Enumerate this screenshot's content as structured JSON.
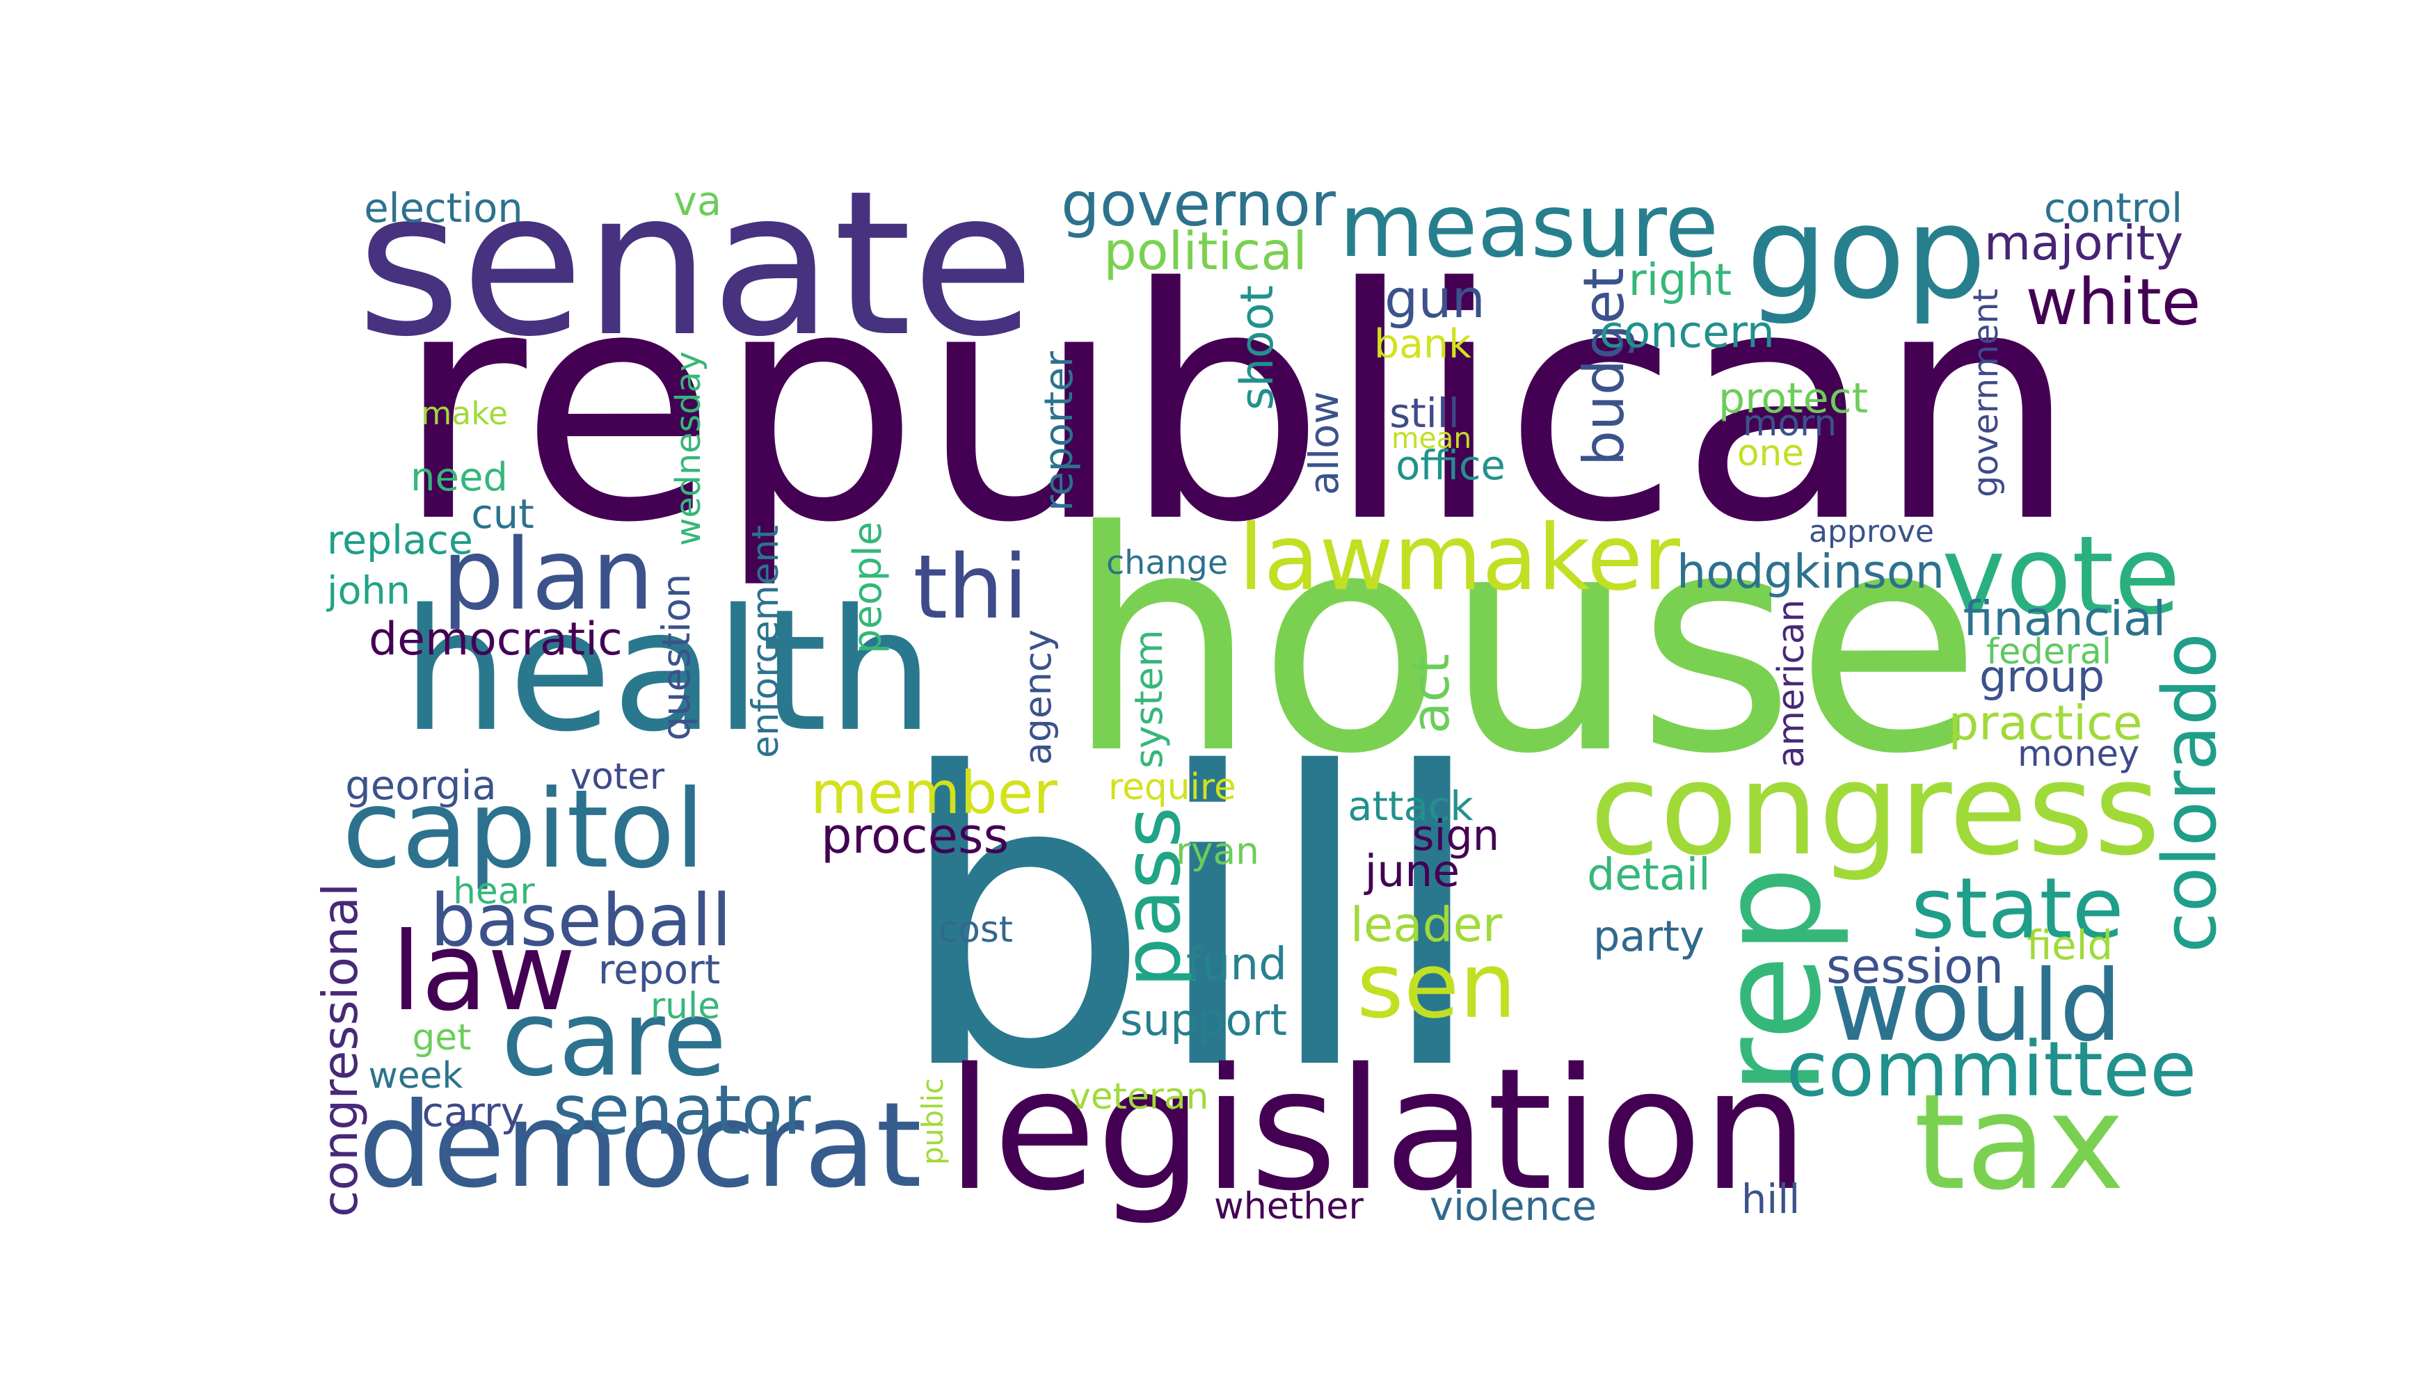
{
  "cloud": {
    "words": [
      {
        "text": "republican",
        "color": "#440154"
      },
      {
        "text": "house",
        "color": "#7ad151"
      },
      {
        "text": "bill",
        "color": "#2a788e"
      },
      {
        "text": "senate",
        "color": "#46327e"
      },
      {
        "text": "health",
        "color": "#2a788e"
      },
      {
        "text": "legislation",
        "color": "#440154"
      },
      {
        "text": "democrat",
        "color": "#365c8d"
      },
      {
        "text": "congress",
        "color": "#a0da39"
      },
      {
        "text": "gop",
        "color": "#277f8e"
      },
      {
        "text": "measure",
        "color": "#277f8e"
      },
      {
        "text": "lawmaker",
        "color": "#c2df23"
      },
      {
        "text": "vote",
        "color": "#2ab07f"
      },
      {
        "text": "law",
        "color": "#440154"
      },
      {
        "text": "capitol",
        "color": "#2c728e"
      },
      {
        "text": "care",
        "color": "#2c728e"
      },
      {
        "text": "tax",
        "color": "#7ad151"
      },
      {
        "text": "would",
        "color": "#2c728e"
      },
      {
        "text": "rep",
        "color": "#35b779"
      },
      {
        "text": "sen",
        "color": "#c2df23"
      },
      {
        "text": "state",
        "color": "#1f9e89"
      },
      {
        "text": "plan",
        "color": "#3b528b"
      },
      {
        "text": "thi",
        "color": "#3e4a89"
      },
      {
        "text": "committee",
        "color": "#21918c"
      },
      {
        "text": "pass",
        "color": "#20a486"
      },
      {
        "text": "member",
        "color": "#d2e21b"
      },
      {
        "text": "baseball",
        "color": "#3b528b"
      },
      {
        "text": "senator",
        "color": "#31688e"
      },
      {
        "text": "colorado",
        "color": "#1f9e89"
      },
      {
        "text": "governor",
        "color": "#2c728e"
      },
      {
        "text": "white",
        "color": "#440154"
      },
      {
        "text": "budget",
        "color": "#3b528b"
      },
      {
        "text": "act",
        "color": "#6ccd5a"
      },
      {
        "text": "gun",
        "color": "#3b528b"
      },
      {
        "text": "majority",
        "color": "#482475"
      },
      {
        "text": "political",
        "color": "#7ad151"
      },
      {
        "text": "shoot",
        "color": "#21918c"
      },
      {
        "text": "hodgkinson",
        "color": "#2c728e"
      },
      {
        "text": "democratic",
        "color": "#440154"
      },
      {
        "text": "process",
        "color": "#440154"
      },
      {
        "text": "practice",
        "color": "#a0da39"
      },
      {
        "text": "financial",
        "color": "#2c728e"
      },
      {
        "text": "group",
        "color": "#3b528b"
      },
      {
        "text": "money",
        "color": "#3e4a89"
      },
      {
        "text": "fund",
        "color": "#26828e"
      },
      {
        "text": "support",
        "color": "#277f8e"
      },
      {
        "text": "leader",
        "color": "#a0da39"
      },
      {
        "text": "session",
        "color": "#3b528b"
      },
      {
        "text": "congressional",
        "color": "#482878"
      },
      {
        "text": "wednesday",
        "color": "#35b779"
      },
      {
        "text": "question",
        "color": "#3b528b"
      },
      {
        "text": "enforcement",
        "color": "#2c728e"
      },
      {
        "text": "people",
        "color": "#35b779"
      },
      {
        "text": "agency",
        "color": "#3b528b"
      },
      {
        "text": "system",
        "color": "#35b779"
      },
      {
        "text": "reporter",
        "color": "#2c728e"
      },
      {
        "text": "allow",
        "color": "#3b528b"
      },
      {
        "text": "government",
        "color": "#3e4a89"
      },
      {
        "text": "american",
        "color": "#482878"
      },
      {
        "text": "public",
        "color": "#a0da39"
      },
      {
        "text": "control",
        "color": "#2c728e"
      },
      {
        "text": "election",
        "color": "#2c728e"
      },
      {
        "text": "va",
        "color": "#6ccd5a"
      },
      {
        "text": "right",
        "color": "#35b779"
      },
      {
        "text": "concern",
        "color": "#21918c"
      },
      {
        "text": "bank",
        "color": "#d2e21b"
      },
      {
        "text": "protect",
        "color": "#6ccd5a"
      },
      {
        "text": "morn",
        "color": "#3b528b"
      },
      {
        "text": "one",
        "color": "#c2df23"
      },
      {
        "text": "make",
        "color": "#a0da39"
      },
      {
        "text": "still",
        "color": "#3e4a89"
      },
      {
        "text": "mean",
        "color": "#c2df23"
      },
      {
        "text": "office",
        "color": "#21918c"
      },
      {
        "text": "need",
        "color": "#35b779"
      },
      {
        "text": "cut",
        "color": "#2c728e"
      },
      {
        "text": "replace",
        "color": "#1f9e89"
      },
      {
        "text": "john",
        "color": "#20a486"
      },
      {
        "text": "change",
        "color": "#2c728e"
      },
      {
        "text": "approve",
        "color": "#3b528b"
      },
      {
        "text": "federal",
        "color": "#5ec962"
      },
      {
        "text": "georgia",
        "color": "#3b528b"
      },
      {
        "text": "voter",
        "color": "#3e4a89"
      },
      {
        "text": "require",
        "color": "#d2e21b"
      },
      {
        "text": "attack",
        "color": "#21918c"
      },
      {
        "text": "sign",
        "color": "#440154"
      },
      {
        "text": "ryan",
        "color": "#6ccd5a"
      },
      {
        "text": "june",
        "color": "#440154"
      },
      {
        "text": "detail",
        "color": "#35b779"
      },
      {
        "text": "hear",
        "color": "#35b779"
      },
      {
        "text": "cost",
        "color": "#31688e"
      },
      {
        "text": "party",
        "color": "#31688e"
      },
      {
        "text": "field",
        "color": "#a0da39"
      },
      {
        "text": "report",
        "color": "#3b528b"
      },
      {
        "text": "rule",
        "color": "#35b779"
      },
      {
        "text": "get",
        "color": "#6ccd5a"
      },
      {
        "text": "week",
        "color": "#2c728e"
      },
      {
        "text": "carry",
        "color": "#3e4a89"
      },
      {
        "text": "veteran",
        "color": "#a0da39"
      },
      {
        "text": "whether",
        "color": "#440154"
      },
      {
        "text": "violence",
        "color": "#31688e"
      },
      {
        "text": "hill",
        "color": "#3b528b"
      }
    ]
  }
}
